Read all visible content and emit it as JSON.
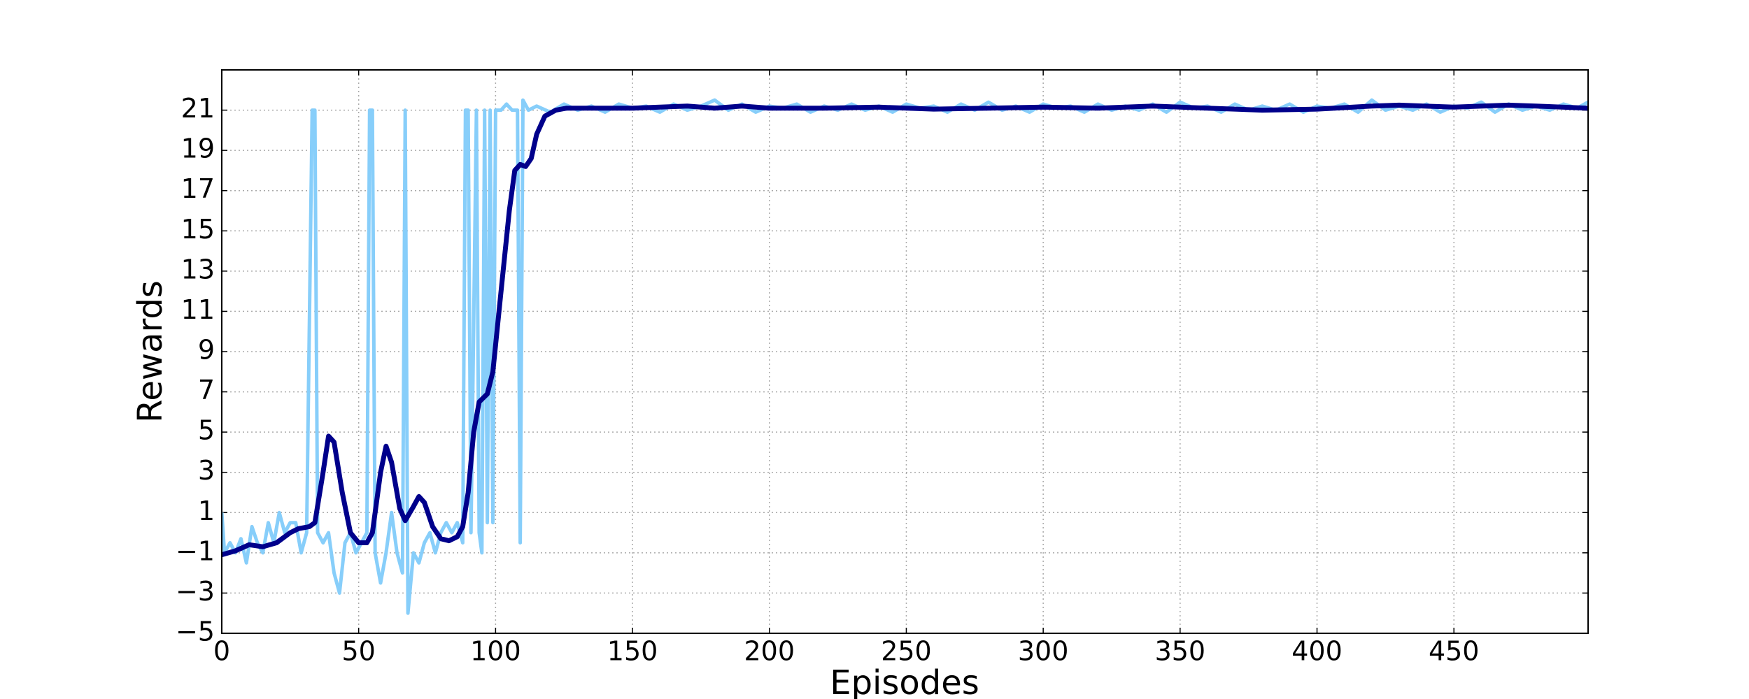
{
  "chart_data": {
    "type": "line",
    "x_label": "Episodes",
    "y_label": "Rewards",
    "xlim": [
      0,
      499
    ],
    "xticks": [
      0,
      50,
      100,
      150,
      200,
      250,
      300,
      350,
      400,
      450
    ],
    "ylim": [
      -5,
      23
    ],
    "yticks": [
      {
        "value": -5,
        "label": "−5"
      },
      {
        "value": -3,
        "label": "−3"
      },
      {
        "value": -1,
        "label": "−1"
      },
      1,
      3,
      5,
      7,
      9,
      11,
      13,
      15,
      17,
      19,
      21
    ],
    "grid": true,
    "series": [
      {
        "color": "#87cefa",
        "x": [
          0,
          1,
          3,
          5,
          7,
          9,
          11,
          13,
          15,
          17,
          19,
          21,
          23,
          25,
          27,
          29,
          31,
          33,
          34,
          35,
          37,
          39,
          41,
          43,
          45,
          47,
          49,
          51,
          53,
          54,
          55,
          56,
          58,
          60,
          62,
          64,
          66,
          67,
          68,
          70,
          72,
          74,
          76,
          78,
          80,
          82,
          84,
          86,
          88,
          89,
          90,
          91,
          93,
          94,
          95,
          96,
          97,
          98,
          99,
          100,
          102,
          104,
          106,
          108,
          109,
          110,
          112,
          115,
          120,
          125,
          130,
          135,
          140,
          145,
          150,
          155,
          160,
          165,
          170,
          175,
          180,
          185,
          190,
          195,
          200,
          205,
          210,
          215,
          220,
          225,
          230,
          235,
          240,
          245,
          250,
          255,
          260,
          265,
          270,
          275,
          280,
          285,
          290,
          295,
          300,
          305,
          310,
          315,
          320,
          325,
          330,
          335,
          340,
          345,
          350,
          355,
          360,
          365,
          370,
          375,
          380,
          385,
          390,
          395,
          400,
          405,
          410,
          415,
          420,
          425,
          430,
          435,
          440,
          445,
          450,
          455,
          460,
          465,
          470,
          475,
          480,
          485,
          490,
          495,
          499
        ],
        "values": [
          1,
          -1,
          -0.5,
          -1,
          -0.3,
          -1.5,
          0.3,
          -0.5,
          -1,
          0.5,
          -0.5,
          1,
          0,
          0.5,
          0.5,
          -1,
          0,
          21,
          21,
          0,
          -0.5,
          0,
          -2,
          -3,
          -0.5,
          0,
          -1,
          -0.5,
          0,
          21,
          21,
          -1,
          -2.5,
          -1,
          1,
          -1,
          -2,
          21,
          -4,
          -1,
          -1.5,
          -0.5,
          0,
          -1,
          0,
          0.5,
          0,
          0.5,
          -0.5,
          21,
          21,
          0,
          21,
          0,
          -1,
          21,
          0.5,
          21,
          0.5,
          21,
          21,
          21.3,
          21,
          21,
          -0.5,
          21.5,
          21,
          21.2,
          20.9,
          21.3,
          21,
          21.2,
          20.9,
          21.3,
          21.1,
          21.2,
          20.9,
          21.3,
          21,
          21.2,
          21.5,
          21,
          21.3,
          20.9,
          21.2,
          21.1,
          21.3,
          20.9,
          21.2,
          21,
          21.3,
          21,
          21.2,
          20.9,
          21.3,
          21.1,
          21.2,
          20.9,
          21.3,
          21,
          21.4,
          21,
          21.2,
          20.9,
          21.3,
          21.1,
          21.2,
          20.9,
          21.3,
          21,
          21.2,
          21,
          21.3,
          20.9,
          21.4,
          21.1,
          21.2,
          20.9,
          21.3,
          21,
          21.2,
          21,
          21.3,
          20.9,
          21.2,
          21.1,
          21.3,
          20.9,
          21.5,
          21,
          21.2,
          21,
          21.3,
          20.9,
          21.2,
          21.1,
          21.4,
          20.9,
          21.3,
          21,
          21.2,
          21,
          21.3,
          21.1,
          21.4
        ]
      },
      {
        "color": "#00008b",
        "x": [
          0,
          5,
          10,
          15,
          20,
          25,
          28,
          32,
          34,
          37,
          39,
          41,
          44,
          47,
          50,
          53,
          55,
          58,
          60,
          62,
          65,
          67,
          70,
          72,
          74,
          77,
          80,
          83,
          86,
          88,
          90,
          92,
          94,
          97,
          99,
          102,
          105,
          107,
          109,
          111,
          113,
          115,
          118,
          122,
          126,
          135,
          150,
          170,
          180,
          190,
          200,
          220,
          240,
          260,
          280,
          300,
          320,
          340,
          360,
          380,
          400,
          420,
          430,
          450,
          470,
          480,
          499
        ],
        "values": [
          -1.1,
          -0.9,
          -0.6,
          -0.7,
          -0.5,
          0,
          0.2,
          0.3,
          0.5,
          3,
          4.8,
          4.5,
          2,
          0,
          -0.5,
          -0.5,
          0,
          3,
          4.3,
          3.5,
          1.2,
          0.6,
          1.3,
          1.8,
          1.5,
          0.3,
          -0.3,
          -0.4,
          -0.2,
          0.3,
          2,
          5,
          6.5,
          6.9,
          8,
          12,
          16,
          18,
          18.3,
          18.2,
          18.6,
          19.8,
          20.7,
          21,
          21.1,
          21.1,
          21.1,
          21.2,
          21.1,
          21.2,
          21.1,
          21.1,
          21.15,
          21.05,
          21.1,
          21.15,
          21.1,
          21.2,
          21.1,
          21,
          21.05,
          21.2,
          21.25,
          21.15,
          21.25,
          21.2,
          21.1
        ]
      }
    ]
  }
}
